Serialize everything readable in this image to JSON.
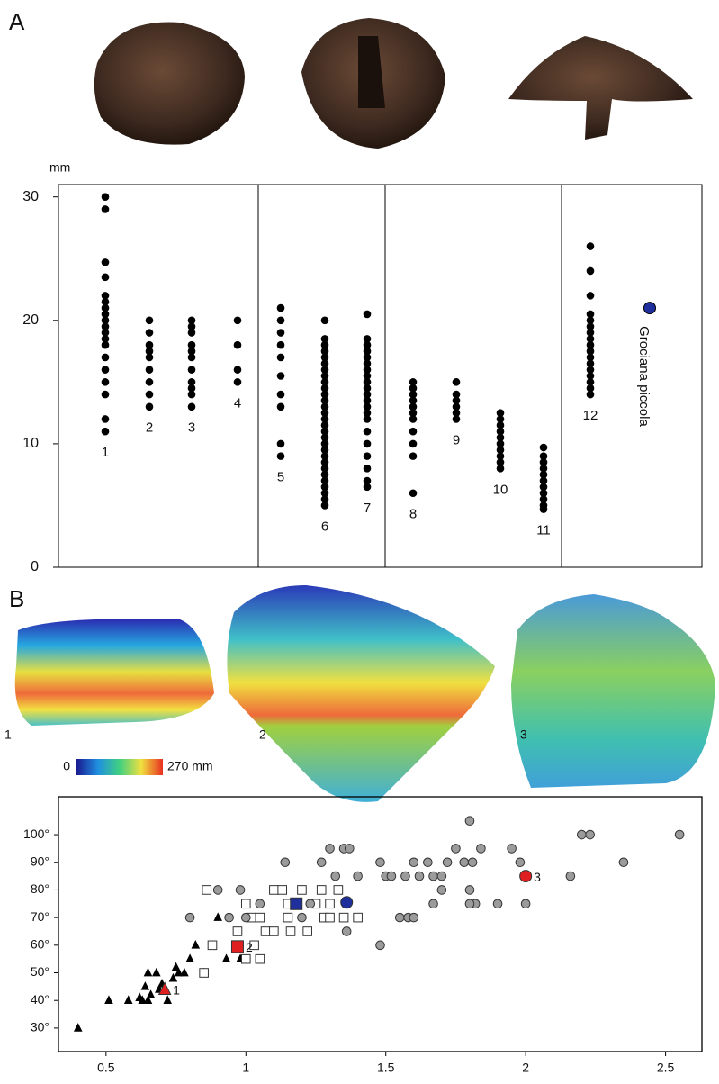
{
  "panel_labels": {
    "a": "A",
    "b": "B"
  },
  "scan_labels": [
    "1",
    "2",
    "3"
  ],
  "colorbar": {
    "min_label": "0",
    "max_label": "270 mm"
  },
  "chart_data": [
    {
      "type": "strip",
      "ylabel": "mm",
      "ylim": [
        0,
        31
      ],
      "yticks": [
        0,
        10,
        20,
        30
      ],
      "color": "#000000",
      "categories": [
        "1",
        "2",
        "3",
        "4",
        "5",
        "6",
        "7",
        "8",
        "9",
        "10",
        "11",
        "12"
      ],
      "values": [
        [
          30,
          29,
          24.7,
          23.5,
          22,
          21.5,
          21,
          20.5,
          20,
          19.5,
          19,
          18.5,
          18,
          17,
          16,
          15,
          14,
          12,
          11
        ],
        [
          20,
          19,
          18,
          17.5,
          17,
          16,
          15,
          14,
          13
        ],
        [
          20,
          19.5,
          19,
          18,
          17.5,
          17,
          16,
          15,
          14.5,
          14,
          13
        ],
        [
          20,
          18,
          16,
          15
        ],
        [
          21,
          20,
          19,
          18,
          17,
          15.5,
          14,
          13,
          10,
          9
        ],
        [
          20,
          18.5,
          18,
          17.5,
          17,
          16.5,
          16,
          15.5,
          15,
          14.5,
          14,
          13.5,
          13,
          12.5,
          12,
          11.5,
          11,
          10.5,
          10,
          9.5,
          9,
          8.5,
          8,
          7.5,
          7,
          6.5,
          6,
          5.5,
          5
        ],
        [
          20.5,
          18.5,
          18,
          17.5,
          17,
          16.5,
          16,
          15.5,
          15,
          14.5,
          14,
          13.5,
          13,
          12.5,
          12,
          11,
          10,
          9,
          8,
          7,
          6.5
        ],
        [
          15,
          14.5,
          14,
          13.5,
          13,
          12.5,
          12,
          11,
          10,
          9,
          6
        ],
        [
          15,
          14,
          13.5,
          13,
          12.5,
          12
        ],
        [
          12.5,
          12,
          11.5,
          11,
          10.5,
          10,
          9.5,
          9,
          8.5,
          8
        ],
        [
          9.7,
          9,
          8.5,
          8,
          7.5,
          7,
          6.5,
          6,
          5.5,
          5,
          4.7
        ],
        [
          26,
          24,
          22,
          20.5,
          20,
          19.5,
          19,
          18.5,
          18,
          17.5,
          17,
          16.5,
          16,
          15.5,
          15,
          14.5,
          14
        ]
      ],
      "highlight": {
        "name": "Grociana piccola",
        "value": 21,
        "color": "#1f2f9c"
      },
      "dividers_after": [
        4,
        7,
        11
      ]
    },
    {
      "type": "scatter",
      "xlim": [
        0.33,
        2.63
      ],
      "ylim": [
        21.5,
        113.7
      ],
      "xticks": [
        0.5,
        1,
        1.5,
        2,
        2.5
      ],
      "yticks": [
        {
          "value": 30,
          "label": "30°"
        },
        {
          "value": 40,
          "label": "40°"
        },
        {
          "value": 50,
          "label": "50°"
        },
        {
          "value": 60,
          "label": "60°"
        },
        {
          "value": 70,
          "label": "70°"
        },
        {
          "value": 80,
          "label": "80°"
        },
        {
          "value": 90,
          "label": "90°"
        },
        {
          "value": 100,
          "label": "100°"
        }
      ],
      "series": [
        {
          "marker": "triangle",
          "color": "#000000",
          "x": [
            0.4,
            0.51,
            0.58,
            0.62,
            0.63,
            0.65,
            0.66,
            0.64,
            0.65,
            0.68,
            0.7,
            0.72,
            0.74,
            0.76,
            0.78,
            0.8,
            0.82,
            0.85,
            0.9,
            0.93,
            0.97,
            0.98,
            0.75,
            0.69
          ],
          "values": [
            30,
            40,
            40,
            41,
            40,
            40,
            42,
            45,
            50,
            50,
            46,
            40,
            48,
            50,
            50,
            55,
            60,
            50,
            70,
            55,
            65,
            55,
            52,
            44
          ]
        },
        {
          "marker": "square",
          "color": "#ffffff",
          "x": [
            0.86,
            0.88,
            0.85,
            0.97,
            1.0,
            1.03,
            1.05,
            1.0,
            1.02,
            1.05,
            1.07,
            1.1,
            1.13,
            1.15,
            1.15,
            1.2,
            1.22,
            1.25,
            1.27,
            1.28,
            1.3,
            1.33,
            1.3,
            1.35,
            1.4,
            1.16,
            1.1
          ],
          "values": [
            80,
            60,
            50,
            65,
            55,
            60,
            55,
            75,
            70,
            70,
            65,
            80,
            80,
            70,
            75,
            80,
            65,
            75,
            80,
            70,
            75,
            80,
            70,
            70,
            70,
            65,
            65
          ]
        },
        {
          "marker": "circle",
          "color": "#9b9b9b",
          "x": [
            0.8,
            0.9,
            0.94,
            0.98,
            1.0,
            1.05,
            1.14,
            1.2,
            1.23,
            1.27,
            1.3,
            1.32,
            1.35,
            1.36,
            1.37,
            1.4,
            1.48,
            1.5,
            1.52,
            1.48,
            1.55,
            1.58,
            1.6,
            1.57,
            1.6,
            1.62,
            1.65,
            1.67,
            1.7,
            1.7,
            1.72,
            1.75,
            1.78,
            1.8,
            1.8,
            1.81,
            1.82,
            1.84,
            1.9,
            1.95,
            1.98,
            2.0,
            2.16,
            2.2,
            2.23,
            2.35,
            2.55,
            1.67,
            1.8
          ],
          "values": [
            70,
            80,
            70,
            80,
            70,
            75,
            90,
            70,
            75,
            90,
            95,
            85,
            95,
            65,
            95,
            85,
            60,
            85,
            85,
            90,
            70,
            70,
            70,
            85,
            90,
            85,
            90,
            85,
            80,
            85,
            90,
            95,
            90,
            105,
            80,
            90,
            75,
            95,
            75,
            95,
            90,
            75,
            85,
            100,
            100,
            90,
            100,
            75,
            75
          ]
        },
        {
          "marker": "triangle",
          "color": "#e02020",
          "x": [
            0.71
          ],
          "values": [
            44
          ],
          "label": "1"
        },
        {
          "marker": "square",
          "color": "#e02020",
          "x": [
            0.97
          ],
          "values": [
            59.5
          ],
          "label": "2"
        },
        {
          "marker": "circle",
          "color": "#e02020",
          "x": [
            2.0
          ],
          "values": [
            85
          ],
          "label": "3"
        },
        {
          "marker": "square",
          "color": "#1f2f9c",
          "x": [
            1.18
          ],
          "values": [
            75
          ]
        },
        {
          "marker": "circle",
          "color": "#1f2f9c",
          "x": [
            1.36
          ],
          "values": [
            75.5
          ]
        }
      ]
    }
  ]
}
